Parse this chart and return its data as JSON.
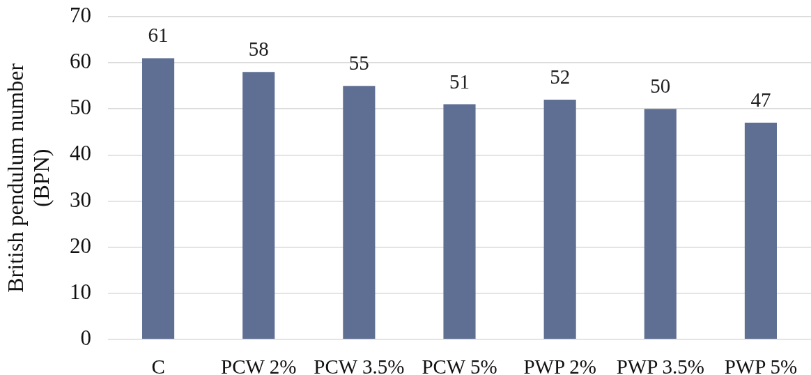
{
  "chart_data": {
    "type": "bar",
    "ylabel": "British pendulum number (BPN)",
    "categories": [
      "C",
      "PCW 2%",
      "PCW 3.5%",
      "PCW 5%",
      "PWP 2%",
      "PWP 3.5%",
      "PWP 5%"
    ],
    "values": [
      61,
      58,
      55,
      51,
      52,
      50,
      47
    ],
    "color": "#5f6f94",
    "ylim": [
      0,
      70
    ],
    "yticks": [
      0,
      10,
      20,
      30,
      40,
      50,
      60,
      70
    ],
    "grid": "y",
    "data_labels": true,
    "legend": false
  }
}
